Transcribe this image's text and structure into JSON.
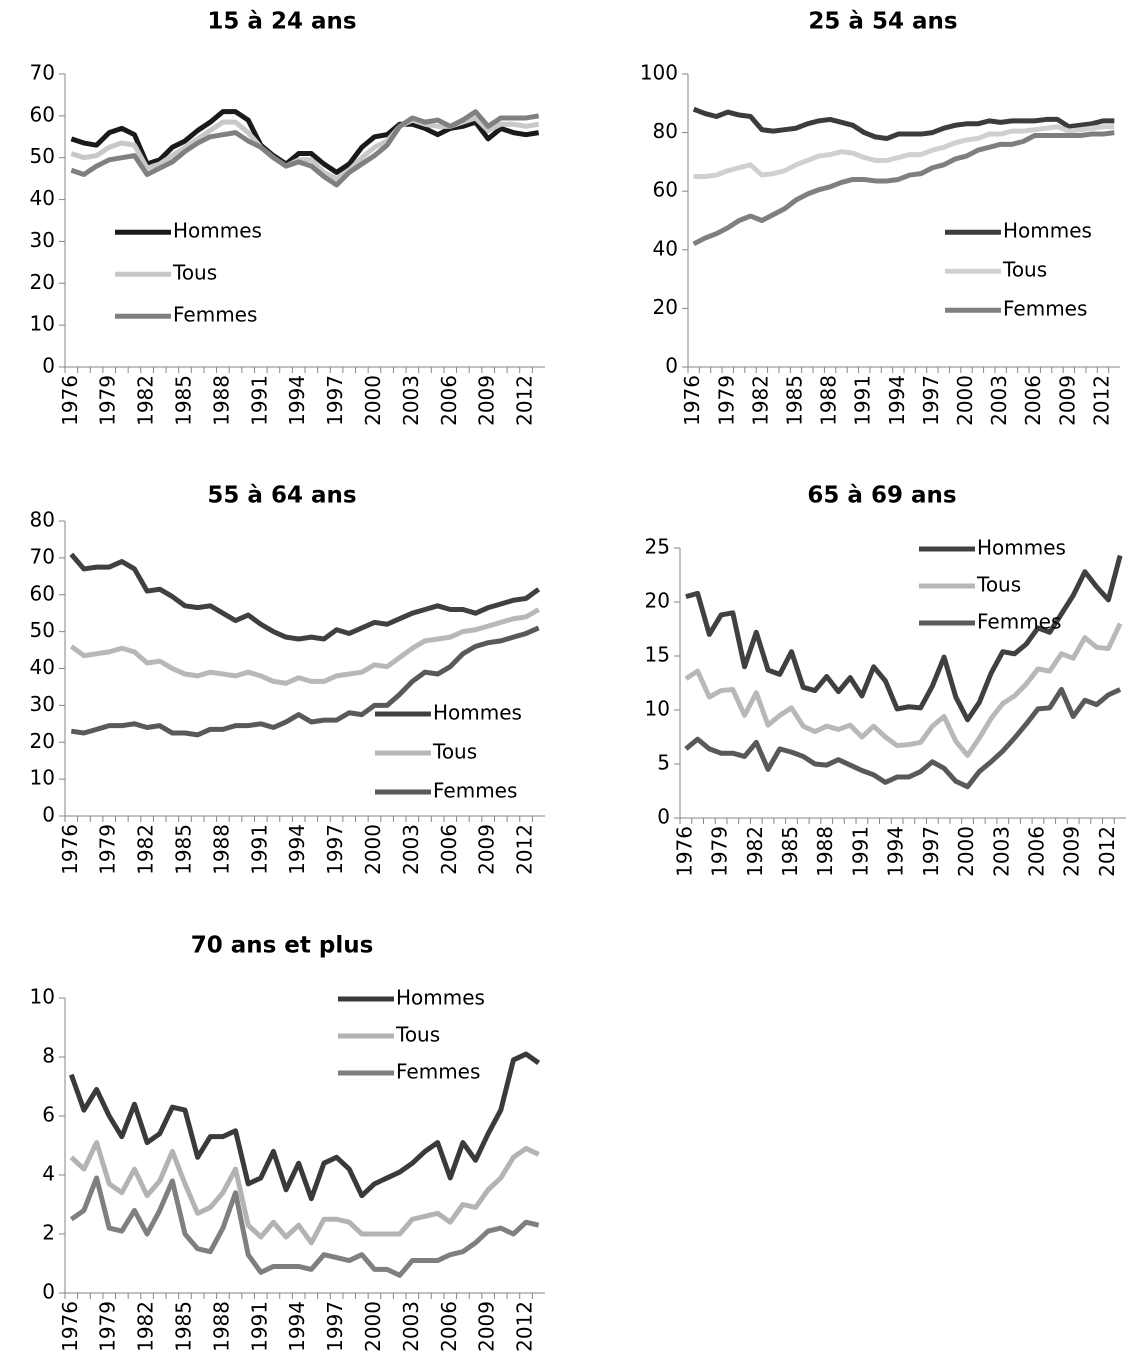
{
  "chart_data": [
    {
      "type": "line",
      "title": "15 à 24 ans",
      "categories": [
        "1976",
        null,
        null,
        "1979",
        null,
        null,
        "1982",
        null,
        null,
        "1985",
        null,
        null,
        "1988",
        null,
        null,
        "1991",
        null,
        null,
        "1994",
        null,
        null,
        "1997",
        null,
        null,
        "2000",
        null,
        null,
        "2003",
        null,
        null,
        "2006",
        null,
        null,
        "2009",
        null,
        null,
        "2012",
        null
      ],
      "series": [
        {
          "name": "Hommes",
          "color": "#1a1a1a",
          "values": [
            54.5,
            53.5,
            53,
            56,
            57,
            55.5,
            48.5,
            49.5,
            52.5,
            54,
            56.5,
            58.5,
            61,
            61,
            59,
            53,
            50.5,
            48.5,
            51,
            51,
            48.5,
            46.5,
            48.5,
            52.5,
            55,
            55.5,
            58,
            58,
            57,
            55.5,
            57,
            57.5,
            58.5,
            54.5,
            57,
            56,
            55.5,
            56
          ]
        },
        {
          "name": "Tous",
          "color": "#c8c8c8",
          "values": [
            51,
            50,
            50.5,
            52.5,
            53.5,
            53,
            47.5,
            48.5,
            50.5,
            52.5,
            54.5,
            56.5,
            58.5,
            58.5,
            56,
            52.5,
            50,
            48,
            49.5,
            49.5,
            46.5,
            45,
            47,
            50,
            52.5,
            54,
            57.5,
            59,
            58,
            57.5,
            57.5,
            58.5,
            59.5,
            56.5,
            58,
            58,
            57.5,
            58
          ]
        },
        {
          "name": "Femmes",
          "color": "#808080",
          "values": [
            47,
            46,
            48,
            49.5,
            50,
            50.5,
            46,
            47.5,
            49,
            51.5,
            53.5,
            55,
            55.5,
            56,
            54,
            52.5,
            50,
            48,
            49,
            48,
            45.5,
            43.5,
            46.5,
            48.5,
            50.5,
            53,
            57.5,
            59.5,
            58.5,
            59,
            57.5,
            59,
            61,
            57.5,
            59.5,
            59.5,
            59.5,
            60
          ]
        }
      ],
      "ylim": [
        0,
        70
      ],
      "yticks": [
        0,
        10,
        20,
        30,
        40,
        50,
        60,
        70
      ],
      "legend": "center-left"
    },
    {
      "type": "line",
      "title": "25 à 54 ans",
      "categories": [
        "1976",
        null,
        null,
        "1979",
        null,
        null,
        "1982",
        null,
        null,
        "1985",
        null,
        null,
        "1988",
        null,
        null,
        "1991",
        null,
        null,
        "1994",
        null,
        null,
        "1997",
        null,
        null,
        "2000",
        null,
        null,
        "2003",
        null,
        null,
        "2006",
        null,
        null,
        "2009",
        null,
        null,
        "2012",
        null
      ],
      "series": [
        {
          "name": "Hommes",
          "color": "#3c3c3c",
          "values": [
            88,
            86.5,
            85.5,
            87,
            86,
            85.5,
            81,
            80.5,
            81,
            81.5,
            83,
            84,
            84.5,
            83.5,
            82.5,
            80,
            78.5,
            78,
            79.5,
            79.5,
            79.5,
            80,
            81.5,
            82.5,
            83,
            83,
            84,
            83.5,
            84,
            84,
            84,
            84.5,
            84.5,
            82,
            82.5,
            83,
            84,
            84
          ]
        },
        {
          "name": "Tous",
          "color": "#d0d0d0",
          "values": [
            65,
            65,
            65.5,
            67,
            68,
            69,
            65.5,
            66,
            67,
            69,
            70.5,
            72,
            72.5,
            73.5,
            73,
            71.5,
            70.5,
            70.5,
            71.5,
            72.5,
            72.5,
            74,
            75,
            76.5,
            77.5,
            78,
            79.5,
            79.5,
            80.5,
            80.5,
            81,
            81.5,
            82,
            80.5,
            81,
            81.5,
            82,
            82
          ]
        },
        {
          "name": "Femmes",
          "color": "#7f7f7f",
          "values": [
            42,
            44,
            45.5,
            47.5,
            50,
            51.5,
            50,
            52,
            54,
            57,
            59,
            60.5,
            61.5,
            63,
            64,
            64,
            63.5,
            63.5,
            64,
            65.5,
            66,
            68,
            69,
            71,
            72,
            74,
            75,
            76,
            76,
            77,
            79,
            79,
            79,
            79,
            79,
            79.5,
            79.5,
            80
          ]
        }
      ],
      "ylim": [
        0,
        100
      ],
      "yticks": [
        0,
        20,
        40,
        60,
        80,
        100
      ],
      "legend": "center-right"
    },
    {
      "type": "line",
      "title": "55 à 64 ans",
      "categories": [
        "1976",
        null,
        null,
        "1979",
        null,
        null,
        "1982",
        null,
        null,
        "1985",
        null,
        null,
        "1988",
        null,
        null,
        "1991",
        null,
        null,
        "1994",
        null,
        null,
        "1997",
        null,
        null,
        "2000",
        null,
        null,
        "2003",
        null,
        null,
        "2006",
        null,
        null,
        "2009",
        null,
        null,
        "2012",
        null
      ],
      "series": [
        {
          "name": "Hommes",
          "color": "#404040",
          "values": [
            71,
            67,
            67.5,
            67.5,
            69,
            67,
            61,
            61.5,
            59.5,
            57,
            56.5,
            57,
            55,
            53,
            54.5,
            52,
            50,
            48.5,
            48,
            48.5,
            48,
            50.5,
            49.5,
            51,
            52.5,
            52,
            53.5,
            55,
            56,
            57,
            56,
            56,
            55,
            56.5,
            57.5,
            58.5,
            59,
            61.5
          ]
        },
        {
          "name": "Tous",
          "color": "#b8b8b8",
          "values": [
            46,
            43.5,
            44,
            44.5,
            45.5,
            44.5,
            41.5,
            42,
            40,
            38.5,
            38,
            39,
            38.5,
            38,
            39,
            38,
            36.5,
            36,
            37.5,
            36.5,
            36.5,
            38,
            38.5,
            39,
            41,
            40.5,
            43,
            45.5,
            47.5,
            48,
            48.5,
            50,
            50.5,
            51.5,
            52.5,
            53.5,
            54,
            56
          ]
        },
        {
          "name": "Femmes",
          "color": "#595959",
          "values": [
            23,
            22.5,
            23.5,
            24.5,
            24.5,
            25,
            24,
            24.5,
            22.5,
            22.5,
            22,
            23.5,
            23.5,
            24.5,
            24.5,
            25,
            24,
            25.5,
            27.5,
            25.5,
            26,
            26,
            28,
            27.5,
            30,
            30,
            33,
            36.5,
            39,
            38.5,
            40.5,
            44,
            46,
            47,
            47.5,
            48.5,
            49.5,
            51
          ]
        }
      ],
      "ylim": [
        0,
        80
      ],
      "yticks": [
        0,
        10,
        20,
        30,
        40,
        50,
        60,
        70,
        80
      ],
      "legend": "lower-right"
    },
    {
      "type": "line",
      "title": "65 à 69 ans",
      "categories": [
        "1976",
        null,
        null,
        "1979",
        null,
        null,
        "1982",
        null,
        null,
        "1985",
        null,
        null,
        "1988",
        null,
        null,
        "1991",
        null,
        null,
        "1994",
        null,
        null,
        "1997",
        null,
        null,
        "2000",
        null,
        null,
        "2003",
        null,
        null,
        "2006",
        null,
        null,
        "2009",
        null,
        null,
        "2012",
        null
      ],
      "series": [
        {
          "name": "Hommes",
          "color": "#404040",
          "values": [
            20.5,
            20.8,
            17,
            18.8,
            19,
            14,
            17.2,
            13.7,
            13.3,
            15.4,
            12.1,
            11.8,
            13.1,
            11.7,
            13,
            11.3,
            14,
            12.7,
            10.1,
            10.3,
            10.2,
            12.2,
            14.9,
            11.2,
            9.1,
            10.7,
            13.4,
            15.4,
            15.2,
            16.1,
            17.6,
            17.2,
            18.9,
            20.6,
            22.8,
            21.4,
            20.2,
            24.3
          ]
        },
        {
          "name": "Tous",
          "color": "#b8b8b8",
          "values": [
            12.9,
            13.6,
            11.2,
            11.8,
            11.9,
            9.5,
            11.6,
            8.6,
            9.5,
            10.2,
            8.5,
            8,
            8.5,
            8.2,
            8.6,
            7.5,
            8.5,
            7.5,
            6.7,
            6.8,
            7,
            8.5,
            9.4,
            7.1,
            5.8,
            7.4,
            9.2,
            10.6,
            11.3,
            12.4,
            13.8,
            13.6,
            15.2,
            14.8,
            16.7,
            15.8,
            15.7,
            18
          ]
        },
        {
          "name": "Femmes",
          "color": "#595959",
          "values": [
            6.4,
            7.3,
            6.4,
            6,
            6,
            5.7,
            7,
            4.5,
            6.4,
            6.1,
            5.7,
            5,
            4.9,
            5.4,
            4.9,
            4.4,
            4,
            3.3,
            3.8,
            3.8,
            4.3,
            5.2,
            4.6,
            3.4,
            2.9,
            4.3,
            5.2,
            6.2,
            7.4,
            8.7,
            10.1,
            10.2,
            11.9,
            9.4,
            10.9,
            10.5,
            11.4,
            11.9
          ]
        }
      ],
      "ylim": [
        0,
        25
      ],
      "yticks": [
        0,
        5,
        10,
        15,
        20,
        25
      ],
      "legend": "upper-right"
    },
    {
      "type": "line",
      "title": "70 ans et plus",
      "categories": [
        "1976",
        null,
        null,
        "1979",
        null,
        null,
        "1982",
        null,
        null,
        "1985",
        null,
        null,
        "1988",
        null,
        null,
        "1991",
        null,
        null,
        "1994",
        null,
        null,
        "1997",
        null,
        null,
        "2000",
        null,
        null,
        "2003",
        null,
        null,
        "2006",
        null,
        null,
        "2009",
        null,
        null,
        "2012",
        null
      ],
      "series": [
        {
          "name": "Hommes",
          "color": "#3a3a3a",
          "values": [
            7.4,
            6.2,
            6.9,
            6,
            5.3,
            6.4,
            5.1,
            5.4,
            6.3,
            6.2,
            4.6,
            5.3,
            5.3,
            5.5,
            3.7,
            3.9,
            4.8,
            3.5,
            4.4,
            3.2,
            4.4,
            4.6,
            4.2,
            3.3,
            3.7,
            3.9,
            4.1,
            4.4,
            4.8,
            5.1,
            3.9,
            5.1,
            4.5,
            5.4,
            6.2,
            7.9,
            8.1,
            7.8
          ]
        },
        {
          "name": "Tous",
          "color": "#b3b3b3",
          "values": [
            4.6,
            4.2,
            5.1,
            3.7,
            3.4,
            4.2,
            3.3,
            3.8,
            4.8,
            3.7,
            2.7,
            2.9,
            3.4,
            4.2,
            2.3,
            1.9,
            2.4,
            1.9,
            2.3,
            1.7,
            2.5,
            2.5,
            2.4,
            2,
            2,
            2,
            2,
            2.5,
            2.6,
            2.7,
            2.4,
            3,
            2.9,
            3.5,
            3.9,
            4.6,
            4.9,
            4.7
          ]
        },
        {
          "name": "Femmes",
          "color": "#7f7f7f",
          "values": [
            2.5,
            2.8,
            3.9,
            2.2,
            2.1,
            2.8,
            2,
            2.8,
            3.8,
            2,
            1.5,
            1.4,
            2.2,
            3.4,
            1.3,
            0.7,
            0.9,
            0.9,
            0.9,
            0.8,
            1.3,
            1.2,
            1.1,
            1.3,
            0.8,
            0.8,
            0.6,
            1.1,
            1.1,
            1.1,
            1.3,
            1.4,
            1.7,
            2.1,
            2.2,
            2,
            2.4,
            2.3
          ]
        }
      ],
      "ylim": [
        0,
        10
      ],
      "yticks": [
        0,
        2,
        4,
        6,
        8,
        10
      ],
      "legend": "upper-right"
    }
  ]
}
